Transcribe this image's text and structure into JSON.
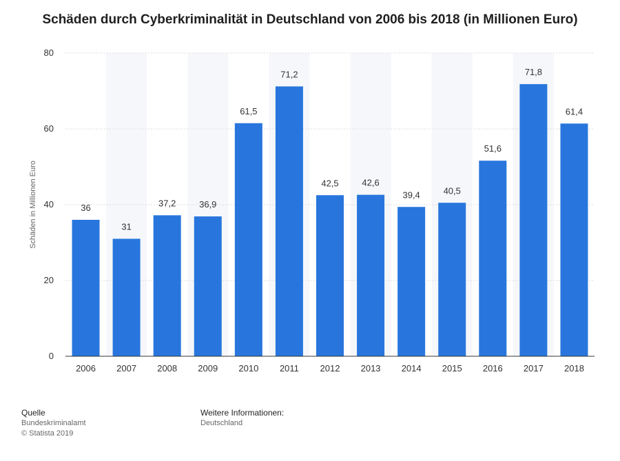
{
  "chart_data": {
    "type": "bar",
    "title": "Schäden durch Cyberkriminalität in Deutschland von 2006 bis 2018 (in Millionen Euro)",
    "xlabel": "",
    "ylabel": "Schäden in Millionen Euro",
    "ylim": [
      0,
      80
    ],
    "yticks": [
      0,
      20,
      40,
      60,
      80
    ],
    "grid": true,
    "bar_color": "#2876dd",
    "categories": [
      "2006",
      "2007",
      "2008",
      "2009",
      "2010",
      "2011",
      "2012",
      "2013",
      "2014",
      "2015",
      "2016",
      "2017",
      "2018"
    ],
    "values": [
      36,
      31,
      37.2,
      36.9,
      61.5,
      71.2,
      42.5,
      42.6,
      39.4,
      40.5,
      51.6,
      71.8,
      61.4
    ],
    "value_labels": [
      "36",
      "31",
      "37,2",
      "36,9",
      "61,5",
      "71,2",
      "42,5",
      "42,6",
      "39,4",
      "40,5",
      "51,6",
      "71,8",
      "61,4"
    ]
  },
  "footer": {
    "source_heading": "Quelle",
    "source_name": "Bundeskriminalamt",
    "copyright": "© Statista 2019",
    "info_heading": "Weitere Informationen:",
    "info_text": "Deutschland"
  }
}
